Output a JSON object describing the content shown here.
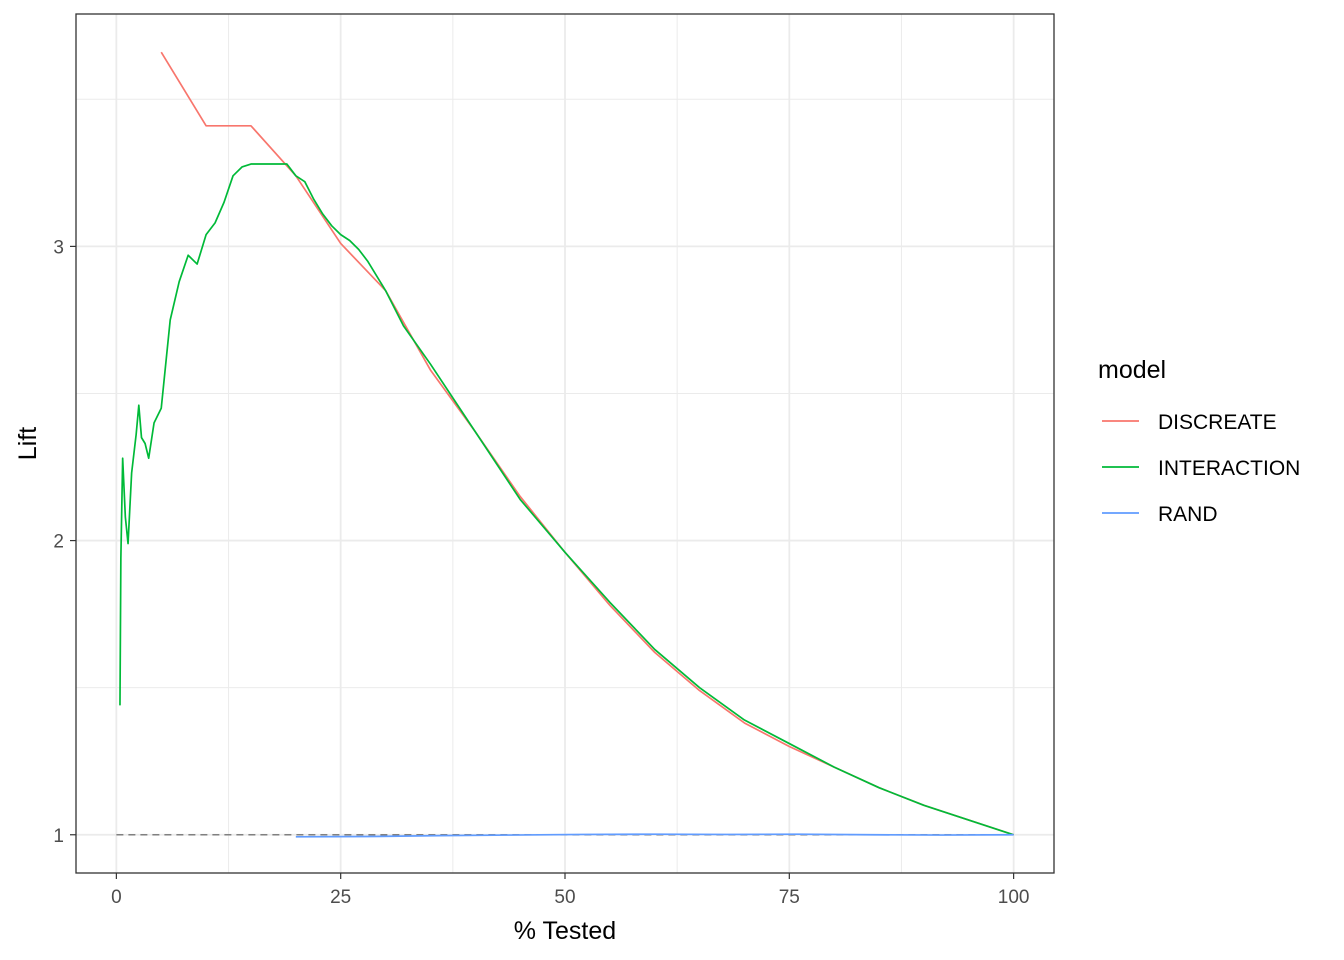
{
  "chart_data": {
    "type": "line",
    "xlabel": "% Tested",
    "ylabel": "Lift",
    "xlim": [
      -4.5,
      104.5
    ],
    "ylim": [
      0.87,
      3.79
    ],
    "x_ticks": [
      0,
      25,
      50,
      75,
      100
    ],
    "x_tick_labels": [
      "0",
      "25",
      "50",
      "75",
      "100"
    ],
    "y_ticks": [
      1,
      2,
      3
    ],
    "y_tick_labels": [
      "1",
      "2",
      "3"
    ],
    "grid": true,
    "legend": {
      "title": "model",
      "position": "right"
    },
    "reference_line": {
      "y": 1,
      "style": "dashed",
      "color": "#808080",
      "x": [
        0,
        100
      ]
    },
    "series": [
      {
        "name": "DISCREATE",
        "color": "#F8766D",
        "x": [
          5,
          10,
          15,
          20,
          25,
          30,
          35,
          40,
          45,
          50,
          55,
          60,
          65,
          70,
          75,
          80,
          85,
          90,
          95,
          100
        ],
        "y": [
          3.66,
          3.41,
          3.41,
          3.24,
          3.01,
          2.85,
          2.58,
          2.37,
          2.15,
          1.96,
          1.78,
          1.62,
          1.49,
          1.38,
          1.3,
          1.23,
          1.16,
          1.1,
          1.05,
          1.0
        ]
      },
      {
        "name": "INTERACTION",
        "color": "#00BA38",
        "x": [
          0.4,
          0.5,
          0.7,
          1.0,
          1.3,
          1.7,
          2.2,
          2.5,
          2.8,
          3.2,
          3.6,
          4.2,
          5.0,
          6.0,
          7.0,
          8.0,
          9.0,
          10.0,
          11.0,
          12.0,
          13.0,
          14.0,
          15.0,
          16.0,
          17.0,
          18.0,
          19.0,
          20.0,
          21.0,
          22.0,
          23.0,
          24.0,
          25.0,
          26.0,
          27.0,
          28.0,
          29.0,
          30.0,
          32.0,
          35.0,
          40.0,
          45.0,
          50.0,
          55.0,
          60.0,
          65.0,
          70.0,
          75.0,
          80.0,
          85.0,
          90.0,
          95.0,
          100.0
        ],
        "y": [
          1.44,
          1.94,
          2.28,
          2.08,
          1.99,
          2.23,
          2.36,
          2.46,
          2.35,
          2.33,
          2.28,
          2.4,
          2.45,
          2.75,
          2.88,
          2.97,
          2.94,
          3.04,
          3.08,
          3.15,
          3.24,
          3.27,
          3.28,
          3.28,
          3.28,
          3.28,
          3.28,
          3.24,
          3.22,
          3.16,
          3.11,
          3.07,
          3.04,
          3.02,
          2.99,
          2.95,
          2.9,
          2.85,
          2.73,
          2.6,
          2.37,
          2.14,
          1.96,
          1.79,
          1.63,
          1.5,
          1.39,
          1.31,
          1.23,
          1.16,
          1.1,
          1.05,
          1.0
        ]
      },
      {
        "name": "RAND",
        "color": "#619CFF",
        "x": [
          20,
          28,
          36,
          44,
          52,
          60,
          68,
          76,
          84,
          92,
          100
        ],
        "y": [
          0.993,
          0.994,
          0.997,
          0.999,
          1.001,
          1.002,
          1.001,
          1.002,
          1.0,
          0.999,
          1.0
        ]
      }
    ]
  }
}
